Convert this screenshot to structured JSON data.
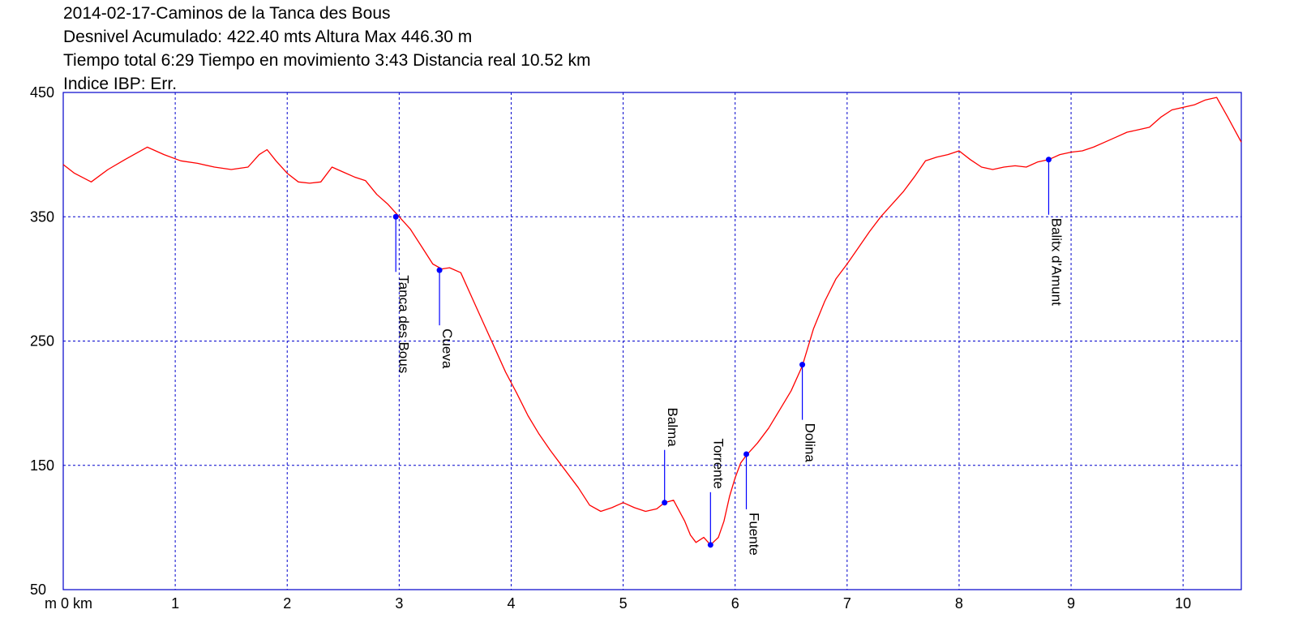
{
  "header": {
    "line1": "2014-02-17-Caminos de la Tanca des Bous",
    "line2": "Desnivel Acumulado: 422.40 mts  Altura Max 446.30 m",
    "line3": "Tiempo total 6:29 Tiempo en movimiento 3:43 Distancia real 10.52 km",
    "line4": "Indice IBP: Err."
  },
  "chart_data": {
    "type": "line",
    "x_unit": "km",
    "y_unit": "m",
    "xlim": [
      0,
      10.52
    ],
    "ylim": [
      50,
      450
    ],
    "x_ticks": [
      0,
      1,
      2,
      3,
      4,
      5,
      6,
      7,
      8,
      9,
      10
    ],
    "x_tick_labels": [
      "m 0 km",
      "1",
      "2",
      "3",
      "4",
      "5",
      "6",
      "7",
      "8",
      "9",
      "10"
    ],
    "y_ticks": [
      50,
      150,
      250,
      350,
      450
    ],
    "y_tick_labels": [
      "50",
      "150",
      "250",
      "350",
      "450"
    ],
    "grid": true,
    "colors": {
      "line": "#ff0000",
      "frame": "#0000cc",
      "grid": "#0000cc",
      "waypoint": "#0000ff"
    },
    "series": [
      {
        "x": [
          0,
          0.1,
          0.25,
          0.4,
          0.55,
          0.75,
          0.9,
          1.05,
          1.2,
          1.35,
          1.5,
          1.65,
          1.75,
          1.82,
          1.9,
          2.0,
          2.1,
          2.2,
          2.3,
          2.4,
          2.5,
          2.6,
          2.7,
          2.8,
          2.9,
          3.0,
          3.1,
          3.2,
          3.3,
          3.38,
          3.45,
          3.55,
          3.65,
          3.75,
          3.85,
          3.95,
          4.05,
          4.15,
          4.25,
          4.35,
          4.45,
          4.6,
          4.7,
          4.8,
          4.9,
          5.0,
          5.1,
          5.2,
          5.3,
          5.37,
          5.45,
          5.55,
          5.6,
          5.65,
          5.72,
          5.78,
          5.85,
          5.9,
          5.95,
          6.0,
          6.05,
          6.1,
          6.2,
          6.3,
          6.4,
          6.5,
          6.6,
          6.7,
          6.8,
          6.9,
          7.0,
          7.1,
          7.2,
          7.3,
          7.4,
          7.5,
          7.6,
          7.7,
          7.8,
          7.9,
          8.0,
          8.1,
          8.2,
          8.3,
          8.4,
          8.5,
          8.6,
          8.7,
          8.8,
          8.9,
          9.0,
          9.1,
          9.2,
          9.3,
          9.4,
          9.5,
          9.6,
          9.7,
          9.8,
          9.9,
          10.0,
          10.1,
          10.2,
          10.3,
          10.4,
          10.52
        ],
        "y": [
          392,
          385,
          378,
          388,
          396,
          406,
          400,
          395,
          393,
          390,
          388,
          390,
          400,
          404,
          395,
          385,
          378,
          377,
          378,
          390,
          386,
          382,
          379,
          368,
          360,
          350,
          340,
          326,
          312,
          308,
          309,
          305,
          285,
          265,
          245,
          225,
          208,
          190,
          175,
          162,
          150,
          132,
          118,
          113,
          116,
          120,
          116,
          113,
          115,
          120,
          122,
          105,
          94,
          88,
          92,
          86,
          92,
          105,
          125,
          140,
          152,
          158,
          168,
          180,
          195,
          210,
          230,
          260,
          282,
          300,
          312,
          325,
          338,
          350,
          360,
          370,
          382,
          395,
          398,
          400,
          403,
          396,
          390,
          388,
          390,
          391,
          390,
          394,
          396,
          400,
          402,
          403,
          406,
          410,
          414,
          418,
          420,
          422,
          430,
          436,
          438,
          440,
          444,
          446,
          430,
          410
        ]
      }
    ],
    "waypoints": [
      {
        "name": "Tanca des Bous",
        "x": 2.97,
        "y": 350
      },
      {
        "name": "Cueva",
        "x": 3.36,
        "y": 307
      },
      {
        "name": "Balma",
        "x": 5.37,
        "y": 120
      },
      {
        "name": "Torrente",
        "x": 5.78,
        "y": 86
      },
      {
        "name": "Fuente",
        "x": 6.1,
        "y": 159
      },
      {
        "name": "Dolina",
        "x": 6.6,
        "y": 231
      },
      {
        "name": "Balitx d'Amunt",
        "x": 8.8,
        "y": 396
      }
    ]
  }
}
